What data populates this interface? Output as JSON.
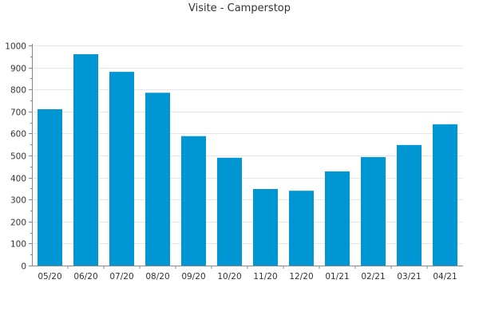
{
  "chart_data": {
    "type": "bar",
    "title": "Visite - Camperstop",
    "xlabel": "",
    "ylabel": "",
    "categories": [
      "05/20",
      "06/20",
      "07/20",
      "08/20",
      "09/20",
      "10/20",
      "11/20",
      "12/20",
      "01/21",
      "02/21",
      "03/21",
      "04/21"
    ],
    "values": [
      710,
      960,
      880,
      785,
      588,
      490,
      348,
      340,
      428,
      493,
      548,
      642
    ],
    "ylim": [
      0,
      1000
    ],
    "yticks": [
      0,
      100,
      200,
      300,
      400,
      500,
      600,
      700,
      800,
      900,
      1000
    ],
    "grid": true,
    "legend": "none",
    "colors": {
      "bar": "#0096d3",
      "grid": "#e6e6e6",
      "axis": "#888888",
      "text": "#333333"
    }
  }
}
